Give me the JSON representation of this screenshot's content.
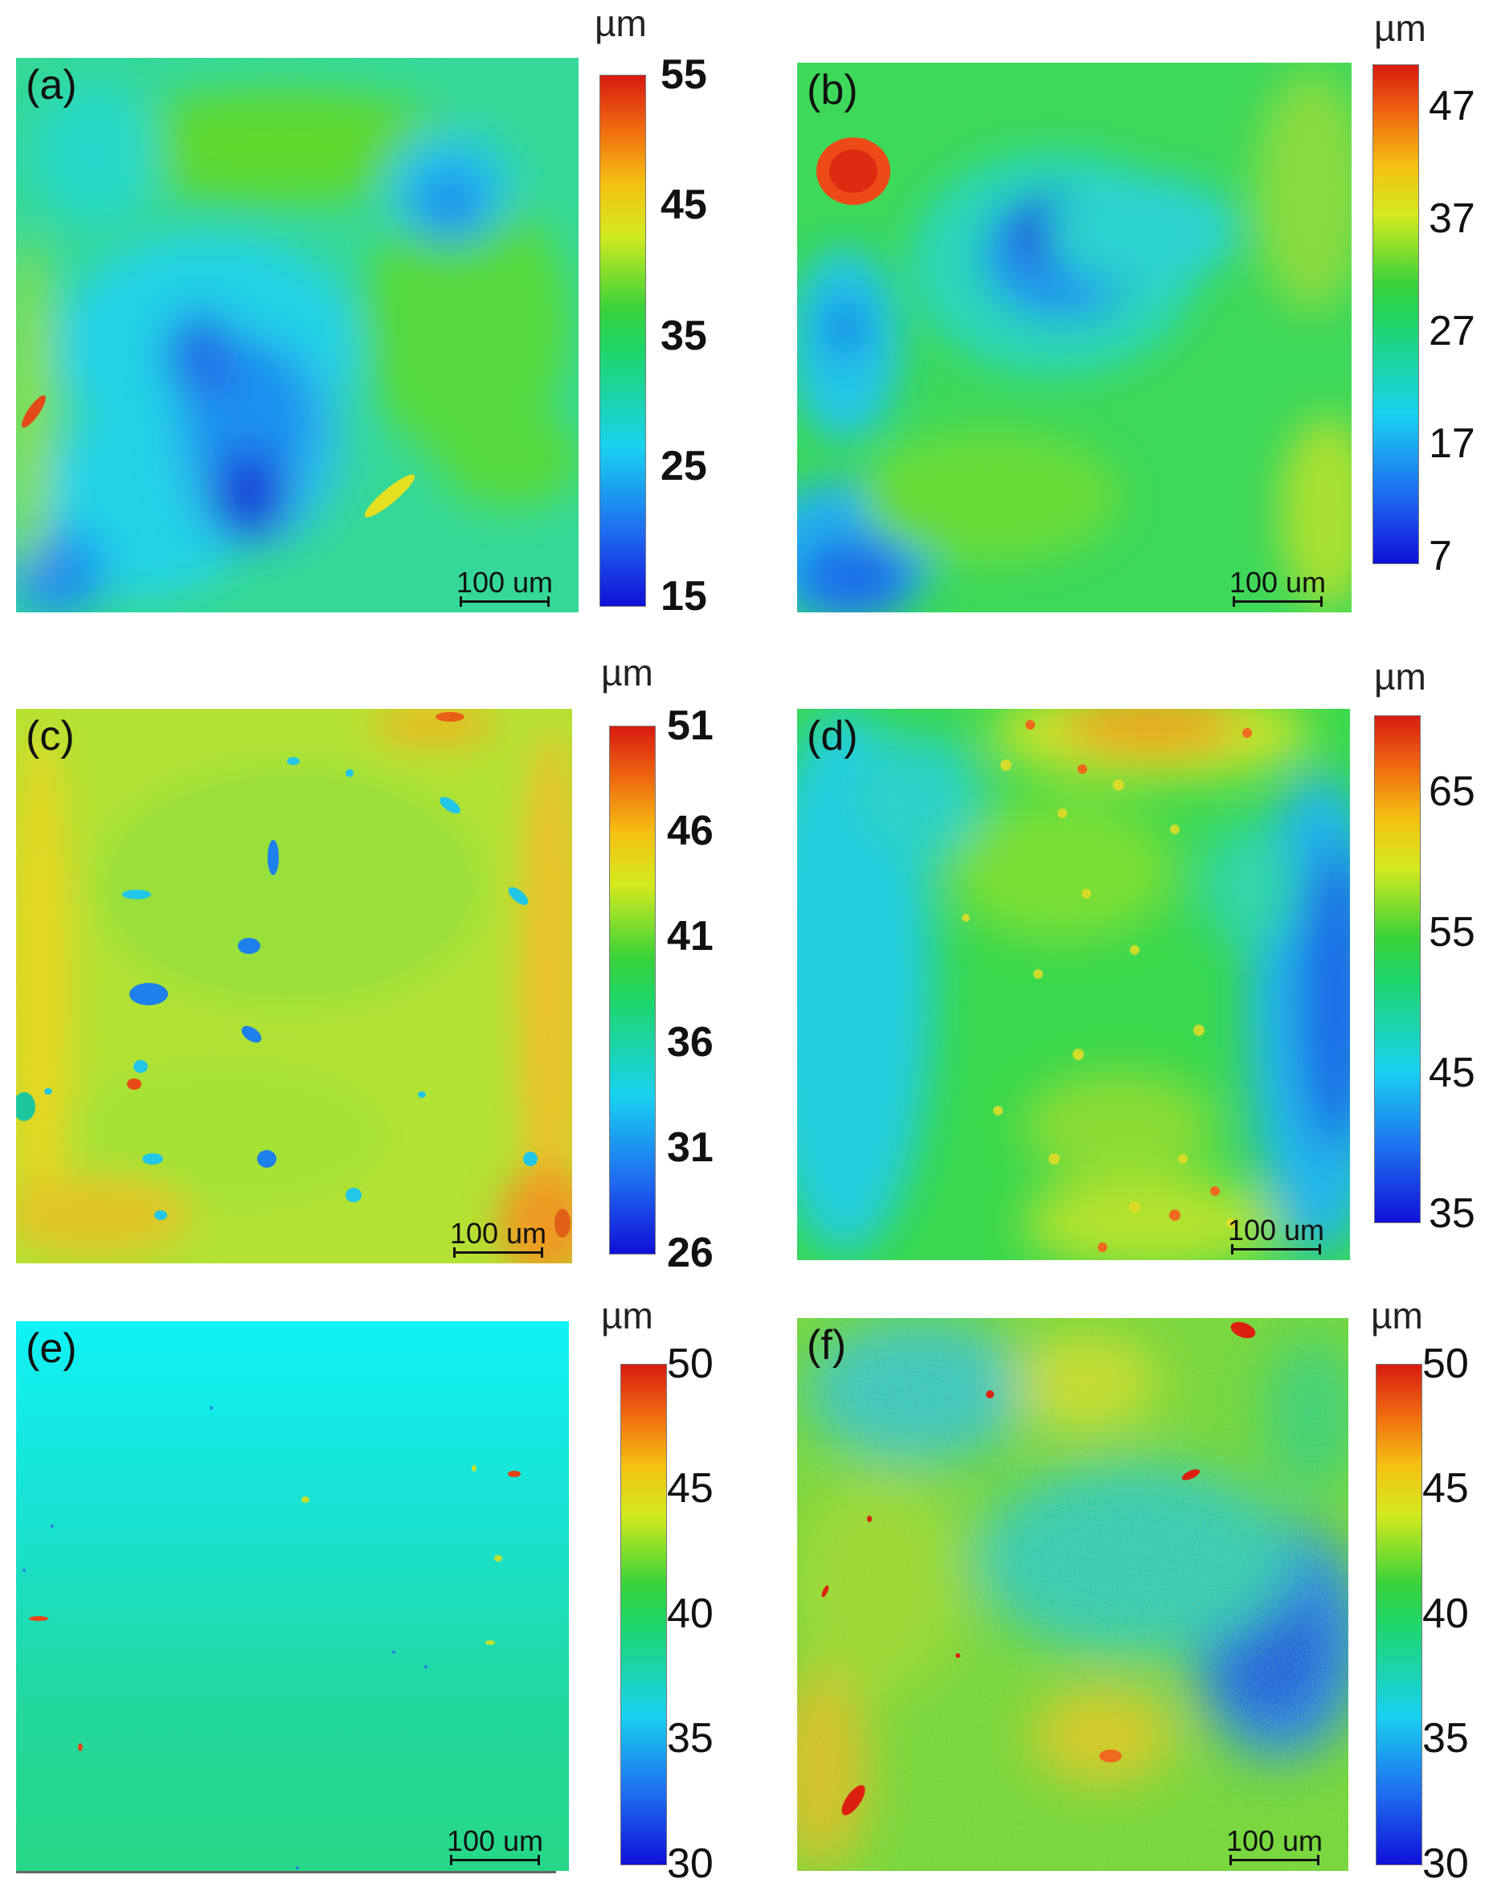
{
  "chart_data": [
    {
      "type": "heatmap",
      "panel_label": "(a)",
      "unit": "µm",
      "colorbar_ticks": [
        "55",
        "45",
        "35",
        "25",
        "15"
      ],
      "colorbar_range": [
        15,
        55
      ],
      "scale_bar": "100 um"
    },
    {
      "type": "heatmap",
      "panel_label": "(b)",
      "unit": "µm",
      "colorbar_ticks": [
        "47",
        "37",
        "27",
        "17",
        "7"
      ],
      "colorbar_range": [
        7,
        47
      ],
      "scale_bar": "100 um"
    },
    {
      "type": "heatmap",
      "panel_label": "(c)",
      "unit": "µm",
      "colorbar_ticks": [
        "51",
        "46",
        "41",
        "36",
        "31",
        "26"
      ],
      "colorbar_range": [
        26,
        51
      ],
      "scale_bar": "100 um"
    },
    {
      "type": "heatmap",
      "panel_label": "(d)",
      "unit": "µm",
      "colorbar_ticks": [
        "65",
        "55",
        "45",
        "35"
      ],
      "colorbar_range": [
        35,
        70
      ],
      "scale_bar": "100 um"
    },
    {
      "type": "heatmap",
      "panel_label": "(e)",
      "unit": "µm",
      "colorbar_ticks": [
        "50",
        "45",
        "40",
        "35",
        "30"
      ],
      "colorbar_range": [
        30,
        50
      ],
      "scale_bar": "100 um"
    },
    {
      "type": "heatmap",
      "panel_label": "(f)",
      "unit": "µm",
      "colorbar_ticks": [
        "50",
        "45",
        "40",
        "35",
        "30"
      ],
      "colorbar_range": [
        30,
        50
      ],
      "scale_bar": "100 um"
    }
  ],
  "colors": {
    "cmap_low": "#1010d8",
    "cmap_cyan": "#19d2f0",
    "cmap_green": "#1ed66a",
    "cmap_yellow": "#d4ea1e",
    "cmap_high": "#d81a10"
  }
}
